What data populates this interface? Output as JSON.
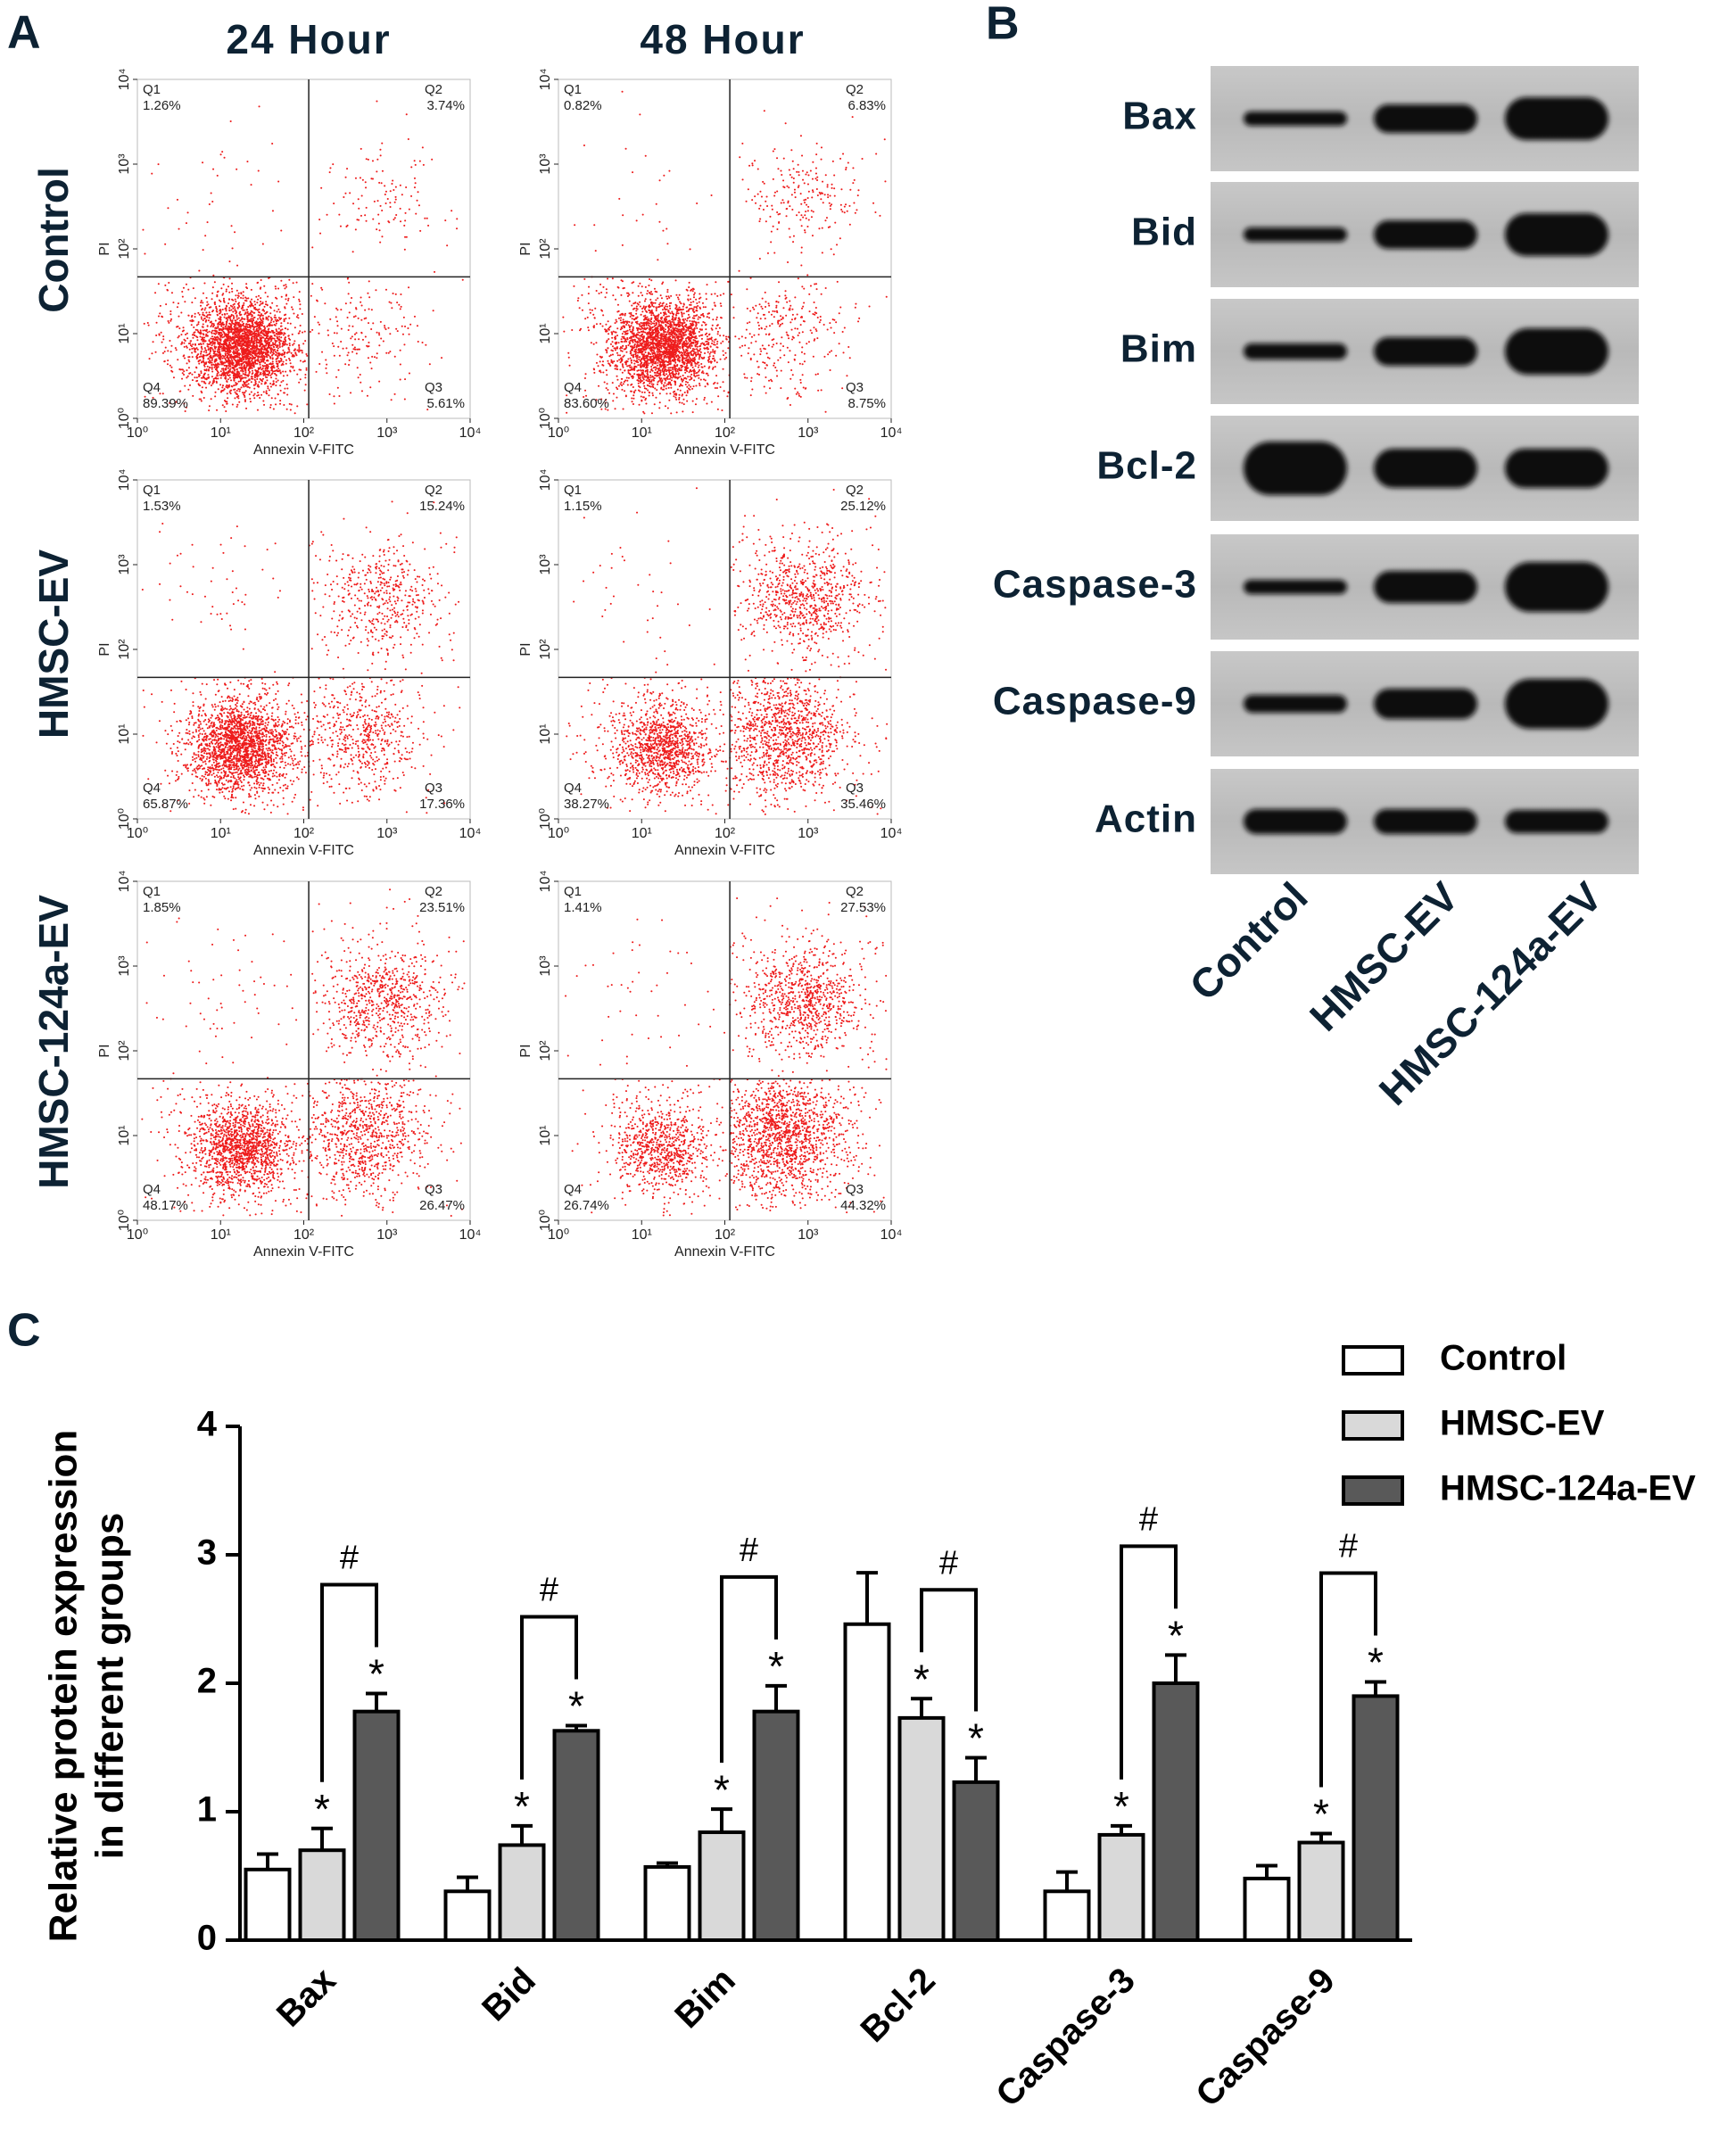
{
  "panel_labels": [
    "A",
    "B",
    "C"
  ],
  "flow_cytometry": {
    "columns": [
      "24 Hour",
      "48 Hour"
    ],
    "rows": [
      "Control",
      "HMSC-EV",
      "HMSC-124a-EV"
    ],
    "x_label": "Annexin V-FITC",
    "y_label": "PI",
    "ticks": [
      "10⁰",
      "10¹",
      "10²",
      "10³",
      "10⁴"
    ],
    "plots": [
      [
        {
          "quadrants": [
            {
              "name": "Q1",
              "value": "1.26%"
            },
            {
              "name": "Q2",
              "value": "3.74%"
            },
            {
              "name": "Q3",
              "value": "5.61%"
            },
            {
              "name": "Q4",
              "value": "89.39%"
            }
          ]
        },
        {
          "quadrants": [
            {
              "name": "Q1",
              "value": "0.82%"
            },
            {
              "name": "Q2",
              "value": "6.83%"
            },
            {
              "name": "Q3",
              "value": "8.75%"
            },
            {
              "name": "Q4",
              "value": "83.60%"
            }
          ]
        }
      ],
      [
        {
          "quadrants": [
            {
              "name": "Q1",
              "value": "1.53%"
            },
            {
              "name": "Q2",
              "value": "15.24%"
            },
            {
              "name": "Q3",
              "value": "17.36%"
            },
            {
              "name": "Q4",
              "value": "65.87%"
            }
          ]
        },
        {
          "quadrants": [
            {
              "name": "Q1",
              "value": "1.15%"
            },
            {
              "name": "Q2",
              "value": "25.12%"
            },
            {
              "name": "Q3",
              "value": "35.46%"
            },
            {
              "name": "Q4",
              "value": "38.27%"
            }
          ]
        }
      ],
      [
        {
          "quadrants": [
            {
              "name": "Q1",
              "value": "1.85%"
            },
            {
              "name": "Q2",
              "value": "23.51%"
            },
            {
              "name": "Q3",
              "value": "26.47%"
            },
            {
              "name": "Q4",
              "value": "48.17%"
            }
          ]
        },
        {
          "quadrants": [
            {
              "name": "Q1",
              "value": "1.41%"
            },
            {
              "name": "Q2",
              "value": "27.53%"
            },
            {
              "name": "Q3",
              "value": "44.32%"
            },
            {
              "name": "Q4",
              "value": "26.74%"
            }
          ]
        }
      ]
    ]
  },
  "western_blot": {
    "proteins": [
      "Bax",
      "Bid",
      "Bim",
      "Bcl-2",
      "Caspase-3",
      "Caspase-9",
      "Actin"
    ],
    "lanes": [
      "Control",
      "HMSC-EV",
      "HMSC-124a-EV"
    ]
  },
  "chart_data": {
    "type": "bar",
    "ylabel": [
      "Relative protein expression",
      "in different groups"
    ],
    "categories": [
      "Bax",
      "Bid",
      "Bim",
      "Bcl-2",
      "Caspase-3",
      "Caspase-9"
    ],
    "series": [
      {
        "name": "Control",
        "color": "#ffffff",
        "values": [
          0.55,
          0.38,
          0.57,
          2.46,
          0.38,
          0.48
        ],
        "errors": [
          0.12,
          0.11,
          0.03,
          0.4,
          0.15,
          0.1
        ]
      },
      {
        "name": "HMSC-EV",
        "color": "#d9d9d9",
        "values": [
          0.7,
          0.74,
          0.84,
          1.73,
          0.82,
          0.76
        ],
        "errors": [
          0.17,
          0.15,
          0.18,
          0.15,
          0.07,
          0.07
        ],
        "significance": [
          "*",
          "*",
          "*",
          "*",
          "*",
          "*"
        ]
      },
      {
        "name": "HMSC-124a-EV",
        "color": "#595959",
        "values": [
          1.78,
          1.63,
          1.78,
          1.23,
          2.0,
          1.9
        ],
        "errors": [
          0.14,
          0.04,
          0.2,
          0.19,
          0.22,
          0.11
        ],
        "significance": [
          "*",
          "*",
          "*",
          "*",
          "*",
          "*"
        ]
      }
    ],
    "comparisons": [
      "#",
      "#",
      "#",
      "#",
      "#",
      "#"
    ],
    "ylim": [
      0,
      4
    ],
    "yticks": [
      0,
      1,
      2,
      3,
      4
    ],
    "legend": "top-right"
  }
}
